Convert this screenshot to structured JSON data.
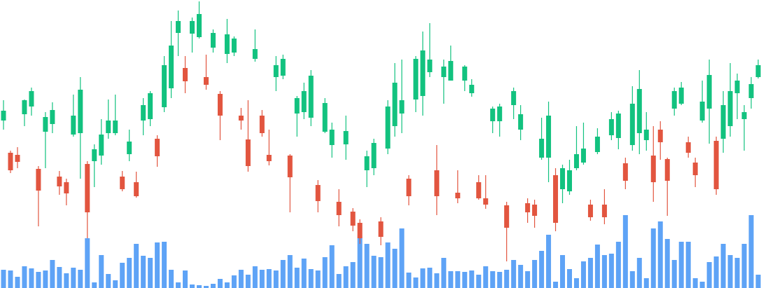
{
  "chart_data": {
    "type": "candlestick",
    "up_color": "#12c27f",
    "down_color": "#e2553f",
    "volume_color": "#5ea3f6",
    "ylim": [
      0,
      411
    ],
    "y2lim": [
      0,
      411
    ],
    "open": [
      239,
      193,
      190,
      248,
      259,
      170,
      223,
      234,
      159,
      151,
      219,
      221,
      177,
      181,
      189,
      221,
      221,
      159,
      191,
      151,
      239,
      241,
      213,
      258,
      285,
      364,
      314,
      363,
      358,
      301,
      343,
      277,
      334,
      336,
      246,
      212,
      327,
      246,
      190,
      301,
      303,
      189,
      249,
      251,
      243,
      147,
      223,
      204,
      123,
      205,
      109,
      93,
      168,
      171,
      95,
      199,
      231,
      249,
      156,
      269,
      274,
      308,
      168,
      301,
      296,
      136,
      296,
      278,
      151,
      128,
      238,
      238,
      118,
      261,
      226,
      121,
      119,
      186,
      186,
      161,
      141,
      138,
      171,
      179,
      119,
      194,
      119,
      218,
      214,
      178,
      204,
      221,
      211,
      189,
      226,
      184,
      256,
      263,
      208,
      179,
      239,
      256,
      210,
      213,
      231,
      278,
      241,
      271,
      301
    ],
    "high": [
      268,
      196,
      201,
      269,
      286,
      174,
      251,
      265,
      167,
      156,
      276,
      301,
      181,
      205,
      241,
      269,
      276,
      167,
      226,
      166,
      271,
      281,
      218,
      331,
      381,
      396,
      331,
      386,
      409,
      333,
      369,
      281,
      384,
      359,
      257,
      268,
      369,
      254,
      226,
      331,
      333,
      191,
      274,
      293,
      311,
      154,
      271,
      236,
      141,
      246,
      114,
      98,
      196,
      213,
      101,
      268,
      321,
      326,
      161,
      331,
      366,
      378,
      204,
      326,
      346,
      168,
      318,
      298,
      161,
      161,
      259,
      263,
      123,
      286,
      261,
      128,
      126,
      243,
      266,
      171,
      176,
      183,
      231,
      236,
      126,
      228,
      141,
      251,
      253,
      186,
      288,
      311,
      251,
      231,
      238,
      186,
      286,
      294,
      216,
      186,
      296,
      326,
      216,
      281,
      321,
      306,
      261,
      301,
      326
    ],
    "low": [
      226,
      164,
      171,
      231,
      246,
      88,
      171,
      221,
      133,
      118,
      216,
      156,
      71,
      144,
      176,
      213,
      218,
      138,
      181,
      129,
      218,
      231,
      173,
      251,
      271,
      331,
      278,
      336,
      356,
      283,
      336,
      211,
      321,
      331,
      226,
      166,
      323,
      216,
      175,
      281,
      298,
      108,
      216,
      241,
      231,
      108,
      221,
      186,
      88,
      183,
      81,
      63,
      144,
      161,
      61,
      191,
      216,
      221,
      118,
      251,
      246,
      301,
      104,
      263,
      296,
      121,
      281,
      273,
      126,
      113,
      221,
      216,
      38,
      241,
      211,
      93,
      86,
      183,
      151,
      81,
      121,
      133,
      168,
      176,
      96,
      191,
      91,
      211,
      198,
      141,
      196,
      191,
      196,
      123,
      183,
      103,
      246,
      261,
      186,
      144,
      236,
      206,
      133,
      193,
      216,
      241,
      196,
      256,
      299
    ],
    "close": [
      253,
      168,
      180,
      268,
      281,
      139,
      244,
      254,
      145,
      135,
      246,
      283,
      108,
      198,
      219,
      239,
      239,
      141,
      209,
      131,
      261,
      278,
      188,
      318,
      346,
      381,
      295,
      381,
      391,
      290,
      364,
      246,
      362,
      356,
      239,
      174,
      341,
      221,
      181,
      318,
      327,
      158,
      271,
      281,
      303,
      124,
      264,
      226,
      104,
      224,
      89,
      71,
      188,
      207,
      73,
      259,
      293,
      268,
      131,
      327,
      339,
      326,
      131,
      316,
      324,
      128,
      316,
      290,
      128,
      119,
      256,
      259,
      86,
      281,
      248,
      108,
      103,
      213,
      246,
      93,
      171,
      168,
      191,
      199,
      101,
      216,
      101,
      241,
      249,
      153,
      263,
      284,
      226,
      151,
      208,
      153,
      281,
      286,
      193,
      161,
      266,
      304,
      141,
      261,
      281,
      296,
      251,
      291,
      318
    ],
    "volume": [
      26,
      25,
      16,
      31,
      28,
      23,
      25,
      40,
      30,
      21,
      29,
      26,
      71,
      8,
      47,
      20,
      11,
      36,
      43,
      63,
      46,
      43,
      65,
      66,
      26,
      8,
      25,
      5,
      4,
      3,
      6,
      13,
      8,
      18,
      26,
      19,
      31,
      26,
      27,
      25,
      40,
      47,
      29,
      42,
      27,
      25,
      44,
      61,
      20,
      31,
      37,
      75,
      63,
      46,
      44,
      65,
      56,
      85,
      22,
      15,
      28,
      29,
      21,
      43,
      24,
      24,
      23,
      25,
      19,
      31,
      24,
      23,
      26,
      40,
      33,
      24,
      40,
      53,
      76,
      9,
      47,
      27,
      14,
      38,
      43,
      62,
      47,
      49,
      66,
      104,
      24,
      43,
      14,
      85,
      95,
      70,
      40,
      66,
      66,
      14,
      9,
      37,
      45,
      63,
      47,
      43,
      63,
      104,
      19
    ]
  }
}
